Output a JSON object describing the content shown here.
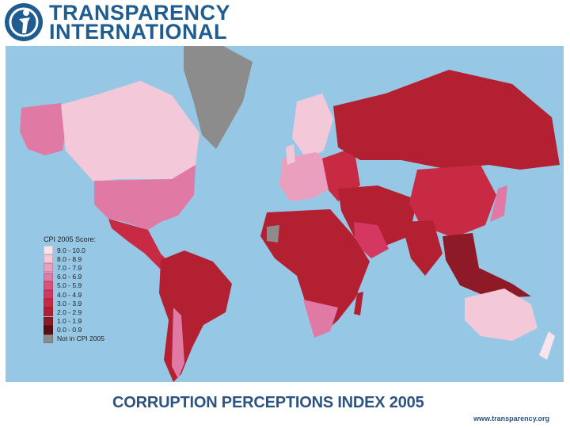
{
  "header": {
    "logo_line1": "TRANSPARENCY",
    "logo_line2": "INTERNATIONAL",
    "logo_icon": "ti-logo-icon"
  },
  "colors": {
    "ocean": "#96c8e6",
    "brand": "#1f5c8f",
    "score_9_10": "#f9e4ec",
    "score_8_9": "#f3c8d8",
    "score_7_8": "#ea9fbe",
    "score_6_7": "#e07aa4",
    "score_5_6": "#d9527c",
    "score_4_5": "#d43860",
    "score_3_4": "#c82a43",
    "score_2_3": "#b32032",
    "score_1_2": "#8d1a26",
    "score_0_1": "#5e0d16",
    "not_in_cpi": "#8c8c8c"
  },
  "legend": {
    "title": "CPI 2005 Score:",
    "items": [
      {
        "label": "9.0 - 10.0",
        "color": "#f9e4ec"
      },
      {
        "label": "8.0 - 8.9",
        "color": "#f3c8d8"
      },
      {
        "label": "7.0 - 7.9",
        "color": "#ea9fbe"
      },
      {
        "label": "6.0 - 6.9",
        "color": "#e07aa4"
      },
      {
        "label": "5.0 - 5.9",
        "color": "#d9527c"
      },
      {
        "label": "4.0 - 4.9",
        "color": "#d43860"
      },
      {
        "label": "3.0 - 3.9",
        "color": "#c82a43"
      },
      {
        "label": "2.0 - 2.9",
        "color": "#b32032"
      },
      {
        "label": "1.0 - 1.9",
        "color": "#8d1a26"
      },
      {
        "label": "0.0 - 0.9",
        "color": "#5e0d16"
      },
      {
        "label": "Not in CPI 2005",
        "color": "#8c8c8c"
      }
    ]
  },
  "footer": {
    "title": "CORRUPTION PERCEPTIONS INDEX 2005",
    "url": "www.transparency.org"
  }
}
